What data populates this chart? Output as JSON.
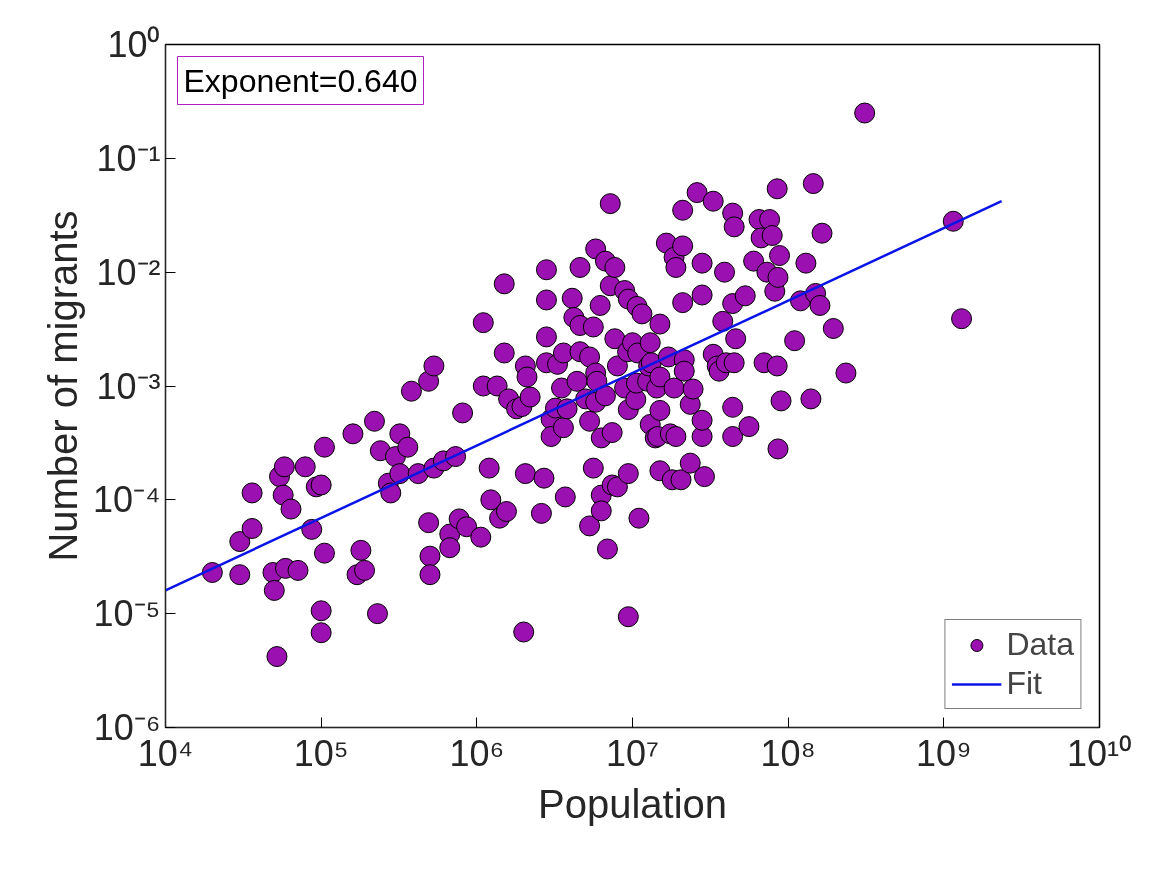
{
  "chart_data": {
    "type": "scatter",
    "xlabel": "Population",
    "ylabel": "Number of migrants",
    "log": "xy",
    "grid": false,
    "legend": "bottom right",
    "xlim": [
      10000,
      10000000000
    ],
    "ylim": [
      1e-06,
      1
    ],
    "xticks": [
      {
        "value": 10000,
        "label": "10⁴"
      },
      {
        "value": 100000,
        "label": "10⁵"
      },
      {
        "value": 1000000,
        "label": "10⁶"
      },
      {
        "value": 10000000,
        "label": "10⁷"
      },
      {
        "value": 100000000,
        "label": "10⁸"
      },
      {
        "value": 1000000000,
        "label": "10⁹"
      },
      {
        "value": 10000000000,
        "label": "10¹⁰"
      }
    ],
    "yticks": [
      {
        "value": 1e-06,
        "label": "10⁻⁶"
      },
      {
        "value": 1e-05,
        "label": "10⁻⁵"
      },
      {
        "value": 0.0001,
        "label": "10⁻⁴"
      },
      {
        "value": 0.001,
        "label": "10⁻³"
      },
      {
        "value": 0.01,
        "label": "10⁻²"
      },
      {
        "value": 0.1,
        "label": "10⁻¹"
      },
      {
        "value": 1,
        "label": "10⁰"
      }
    ],
    "annotations": [
      "Exponent=0.640"
    ],
    "series": [
      {
        "name": "Data",
        "marker": "circle",
        "color": "#9a10b0",
        "x": [
          20000.0,
          30000.0,
          30000.0,
          36000.0,
          36000.0,
          49000.0,
          50000.0,
          52000.0,
          54000.0,
          58000.0,
          57000.0,
          59000.0,
          64000.0,
          71000.0,
          79000.0,
          87000.0,
          93000.0,
          100000.0,
          105000.0,
          100000.0,
          100000.0,
          105000.0,
          160000.0,
          170000.0,
          180000.0,
          190000.0,
          220000.0,
          230000.0,
          240000.0,
          270000.0,
          280000.0,
          300000.0,
          320000.0,
          320000.0,
          360000.0,
          380000.0,
          420000.0,
          490000.0,
          530000.0,
          490000.0,
          500000.0,
          500000.0,
          530000.0,
          610000.0,
          670000.0,
          670000.0,
          730000.0,
          770000.0,
          810000.0,
          860000.0,
          1060000.0,
          1100000.0,
          1100000.0,
          1200000.0,
          1230000.0,
          1350000.0,
          1400000.0,
          1500000.0,
          1500000.0,
          1550000.0,
          1600000.0,
          1800000.0,
          2000000.0,
          2050000.0,
          2050000.0,
          2100000.0,
          1950000.0,
          2200000.0,
          2600000.0,
          2700000.0,
          2800000.0,
          2800000.0,
          2800000.0,
          2800000.0,
          3000000.0,
          3000000.0,
          3200000.0,
          3300000.0,
          3500000.0,
          3600000.0,
          3600000.0,
          3700000.0,
          3800000.0,
          4100000.0,
          4200000.0,
          4400000.0,
          4600000.0,
          4600000.0,
          4600000.0,
          5000000.0,
          5300000.0,
          5300000.0,
          5300000.0,
          5600000.0,
          5600000.0,
          5800000.0,
          5800000.0,
          5800000.0,
          5900000.0,
          6200000.0,
          6300000.0,
          6300000.0,
          6300000.0,
          6700000.0,
          6700000.0,
          6900000.0,
          7200000.0,
          7200000.0,
          7400000.0,
          7400000.0,
          7700000.0,
          7700000.0,
          8000000.0,
          8000000.0,
          8900000.0,
          8900000.0,
          9300000.0,
          9400000.0,
          9400000.0,
          9400000.0,
          9400000.0,
          10000000.0,
          10500000.0,
          10600000.0,
          10700000.0,
          10800000.0,
          11000000.0,
          11500000.0,
          12500000.0,
          12700000.0,
          13000000.0,
          13000000.0,
          13200000.0,
          14000000.0,
          14300000.0,
          14500000.0,
          15000000.0,
          15000000.0,
          15000000.0,
          15000000.0,
          16500000.0,
          17000000.0,
          17500000.0,
          18000000.0,
          18500000.0,
          18500000.0,
          19000000.0,
          19000000.0,
          20500000.0,
          21000000.0,
          21000000.0,
          21000000.0,
          21500000.0,
          21500000.0,
          23500000.0,
          23500000.0,
          24500000.0,
          26000000.0,
          28000000.0,
          28000000.0,
          28000000.0,
          28000000.0,
          29000000.0,
          33000000.0,
          33000000.0,
          35000000.0,
          36000000.0,
          38000000.0,
          39000000.0,
          40000000.0,
          44000000.0,
          44000000.0,
          44000000.0,
          44000000.0,
          45000000.0,
          45000000.0,
          46000000.0,
          53000000.0,
          56000000.0,
          60000000.0,
          65000000.0,
          67000000.0,
          70000000.0,
          73000000.0,
          76000000.0,
          79000000.0,
          82000000.0,
          85000000.0,
          85000000.0,
          86000000.0,
          88000000.0,
          90000000.0,
          86000000.0,
          110000000.0,
          140000000.0,
          120000000.0,
          130000000.0,
          145000000.0,
          150000000.0,
          160000000.0,
          165000000.0,
          195000000.0,
          235000000.0,
          310000000.0,
          1150000000.0,
          1300000000.0
        ],
        "values": [
          2.3e-05,
          4.3e-05,
          2.2e-05,
          5.6e-05,
          0.000115,
          2.3e-05,
          1.6e-05,
          4.2e-06,
          0.00016,
          0.000195,
          0.00011,
          2.5e-05,
          8.3e-05,
          2.4e-05,
          0.000195,
          5.5e-05,
          0.00013,
          0.000135,
          0.00029,
          6.8e-06,
          1.06e-05,
          3.4e-05,
          0.00038,
          2.2e-05,
          3.6e-05,
          2.4e-05,
          0.00049,
          1e-05,
          0.00027,
          0.00014,
          0.000115,
          0.00024,
          0.00038,
          0.00017,
          0.00029,
          0.0009,
          0.00017,
          0.0011,
          0.0015,
          6.3e-05,
          3.2e-05,
          2.2e-05,
          0.00019,
          0.00022,
          5e-05,
          3.8e-05,
          0.00024,
          6.8e-05,
          0.00058,
          5.8e-05,
          4.7e-05,
          0.0036,
          0.001,
          0.00019,
          0.0001,
          0.001,
          6.9e-05,
          0.0079,
          0.00195,
          7.9e-05,
          0.00077,
          0.00063,
          6.9e-06,
          0.00017,
          0.0015,
          0.0012,
          0.00066,
          0.0008,
          7.6e-05,
          0.000155,
          0.0105,
          0.0057,
          0.0027,
          0.0016,
          0.00051,
          0.00036,
          0.00064,
          0.00155,
          0.00096,
          0.00195,
          0.00043,
          0.000106,
          0.00063,
          0.0059,
          0.004,
          0.0011,
          0.011,
          0.0034,
          0.002,
          0.00077,
          0.00049,
          5.9e-05,
          0.0018,
          0.00019,
          0.0033,
          0.016,
          0.0013,
          0.00072,
          0.0011,
          0.0051,
          0.00035,
          0.00011,
          8e-05,
          0.00082,
          0.0125,
          3.7e-05,
          0.04,
          0.0076,
          0.00039,
          0.000135,
          0.0026,
          0.011,
          0.0015,
          0.00013,
          0.0069,
          0.00096,
          0.002,
          9.4e-06,
          0.0058,
          0.00062,
          0.00017,
          0.0024,
          0.00076,
          0.00106,
          0.005,
          0.00195,
          6.9e-05,
          0.0043,
          0.0011,
          0.0015,
          0.0024,
          0.00046,
          0.0016,
          0.00035,
          0.00096,
          0.00036,
          0.0035,
          0.00061,
          0.00018,
          0.0012,
          0.018,
          0.0018,
          0.00038,
          0.00015,
          0.0135,
          0.00096,
          0.011,
          0.00036,
          0.00015,
          0.0054,
          0.035,
          0.017,
          0.0017,
          0.00135,
          0.00069,
          0.00021,
          0.00094,
          0.05,
          0.0063,
          0.012,
          0.00036,
          0.0005,
          0.00016,
          0.042,
          0.0019,
          0.0015,
          0.00135,
          0.0037,
          0.01,
          0.0016,
          0.0053,
          0.033,
          0.00065,
          0.00036,
          0.0016,
          0.025,
          0.0026,
          0.0062,
          0.00044,
          0.0125,
          0.029,
          0.02,
          0.0016,
          0.01,
          0.029,
          0.021,
          0.0068,
          0.0015,
          0.054,
          0.009,
          0.014,
          0.00074,
          0.00028,
          0.0025,
          0.00077,
          0.0056,
          0.012,
          0.06,
          0.0065,
          0.0051,
          0.022,
          0.0032,
          0.0013,
          0.25,
          0.028,
          0.0039
        ]
      },
      {
        "name": "Fit",
        "type": "line",
        "marker": "none",
        "color": "#0a14e6",
        "x": [
          10000,
          2350000000
        ],
        "values": [
          1.6e-05,
          0.042
        ]
      }
    ]
  }
}
